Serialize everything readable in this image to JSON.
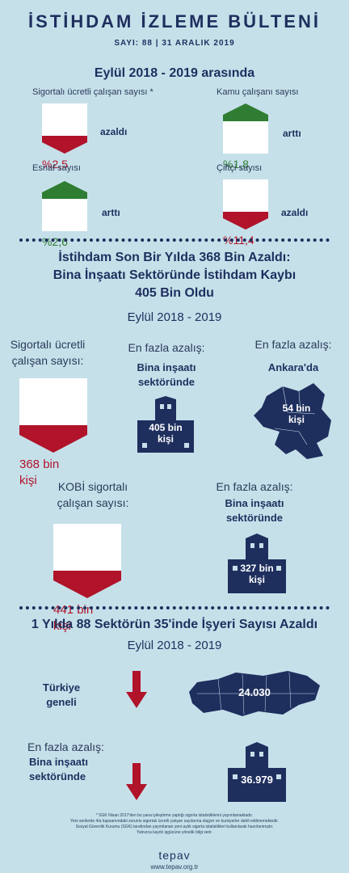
{
  "header": {
    "title": "İSTİHDAM İZLEME BÜLTENİ",
    "issue": "SAYI: 88 | 31 ARALIK 2019"
  },
  "section1": {
    "heading": "Eylül 2018 - 2019 arasında",
    "items": [
      {
        "label": "Sigortalı ücretli çalışan sayısı *",
        "value": "%2,5",
        "direction": "azaldı",
        "trend": "down"
      },
      {
        "label": "Kamu çalışanı sayısı",
        "value": "%1,8",
        "direction": "arttı",
        "trend": "up"
      },
      {
        "label": "Esnaf sayısı",
        "value": "%2,6",
        "direction": "arttı",
        "trend": "up"
      },
      {
        "label": "Çiftçi sayısı",
        "value": "%11,4",
        "direction": "azaldı",
        "trend": "down"
      }
    ]
  },
  "section2": {
    "heading_line1": "İstihdam Son Bir Yılda 368 Bin Azaldı:",
    "heading_line2": "Bina İnşaatı Sektöründe İstihdam Kaybı",
    "heading_line3": "405 Bin Oldu",
    "period": "Eylül 2018 - 2019",
    "col1_label_line1": "Sigortalı ücretli",
    "col1_label_line2": "çalışan sayısı:",
    "col1_value_line1": "368 bin",
    "col1_value_line2": "kişi",
    "col2_label": "En fazla azalış:",
    "col2_bold_line1": "Bina inşaatı",
    "col2_bold_line2": "sektöründe",
    "col2_value_line1": "405 bin",
    "col2_value_line2": "kişi",
    "col3_label": "En fazla azalış:",
    "col3_bold": "Ankara'da",
    "col3_value_line1": "54 bin",
    "col3_value_line2": "kişi",
    "kobi_label_line1": "KOBİ sigortalı",
    "kobi_label_line2": "çalışan sayısı:",
    "kobi_value_line1": "441 bin",
    "kobi_value_line2": "kişi",
    "kobi_max_label": "En fazla azalış:",
    "kobi_max_bold_line1": "Bina inşaatı",
    "kobi_max_bold_line2": "sektöründe",
    "kobi_max_value_line1": "327 bin",
    "kobi_max_value_line2": "kişi"
  },
  "section3": {
    "heading": "1 Yılda 88 Sektörün 35'inde İşyeri Sayısı Azaldı",
    "period": "Eylül 2018 - 2019",
    "row1_label_line1": "Türkiye",
    "row1_label_line2": "geneli",
    "row1_value": "24.030",
    "row2_label": "En fazla azalış:",
    "row2_bold_line1": "Bina inşaatı",
    "row2_bold_line2": "sektöründe",
    "row2_value": "36.979"
  },
  "footnote": {
    "line1": "* SGK Nisan 2017'den bu yana iyileştirme yaptığı sigorta istatistiklerini yayımlamaktadır.",
    "line2": "Yeni serilerde 4/a kapsamındaki zorunlu sigortalı ücretli çalışan sayılarına stajyer ve kursiyerler dahil edilmemektedir.",
    "line3": "Sosyal Güvenlik Kurumu (SGK) tarafından yayımlanan yeni aylık sigorta istatistikleri kullanılarak hazırlanmıştır.",
    "line4": "Yalnızca kayıtlı işgücüne yönelik bilgi verir."
  },
  "brand": {
    "logo": "tepav",
    "url": "www.tepav.org.tr"
  },
  "colors": {
    "background": "#c6e0ea",
    "navy": "#1e2f5e",
    "red": "#b0132a",
    "green": "#2f7d32"
  }
}
